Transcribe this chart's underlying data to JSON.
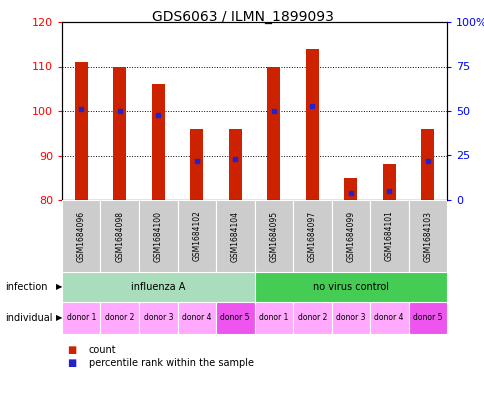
{
  "title": "GDS6063 / ILMN_1899093",
  "samples": [
    "GSM1684096",
    "GSM1684098",
    "GSM1684100",
    "GSM1684102",
    "GSM1684104",
    "GSM1684095",
    "GSM1684097",
    "GSM1684099",
    "GSM1684101",
    "GSM1684103"
  ],
  "count_values": [
    111,
    110,
    106,
    96,
    96,
    110,
    114,
    85,
    88,
    96
  ],
  "percentile_values": [
    51,
    50,
    48,
    22,
    23,
    50,
    53,
    4,
    5,
    22
  ],
  "ylim_left": [
    80,
    120
  ],
  "ylim_right": [
    0,
    100
  ],
  "y_ticks_left": [
    80,
    90,
    100,
    110,
    120
  ],
  "y_ticks_right": [
    0,
    25,
    50,
    75,
    100
  ],
  "y_tick_labels_right": [
    "0",
    "25",
    "50",
    "75",
    "100%"
  ],
  "bar_color": "#CC2200",
  "percentile_color": "#2222CC",
  "inf_color_light": "#AADDBB",
  "inf_color_dark": "#44CC55",
  "individual_color_light": "#FFAAFF",
  "individual_color_dark": "#EE55EE",
  "sample_bg_color": "#CCCCCC",
  "bar_width": 0.35,
  "title_fontsize": 10,
  "tick_fontsize": 8,
  "annotation_fontsize": 7,
  "sample_fontsize": 5.5,
  "individual_fontsize": 5.5,
  "legend_fontsize": 7,
  "legend_count": "count",
  "legend_percentile": "percentile rank within the sample"
}
